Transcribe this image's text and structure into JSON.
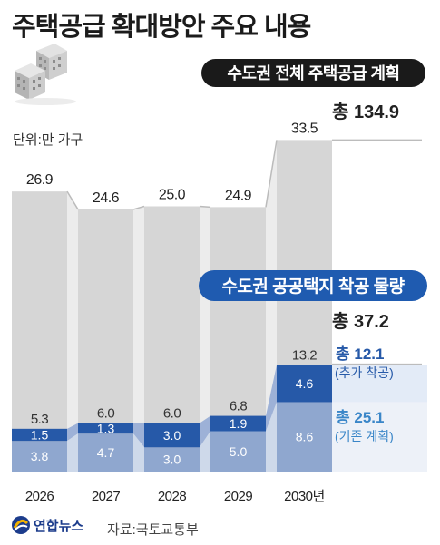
{
  "title": "주택공급 확대방안 주요 내용",
  "unit_label": "단위:만 가구",
  "source_label": "자료:국토교통부",
  "logo_label": "연합뉴스",
  "colors": {
    "total_bar": "#d6d6d6",
    "added": "#2659a8",
    "existing": "#8fa7cf",
    "banner": "#1a1a1a",
    "banner2": "#1f5bb0",
    "label_blue": "#3a86c8"
  },
  "chart_data": {
    "type": "bar",
    "categories": [
      "2026",
      "2027",
      "2028",
      "2029",
      "2030년"
    ],
    "series": [
      {
        "name": "수도권 전체 주택공급 계획",
        "values": [
          26.9,
          24.6,
          25.0,
          24.9,
          33.5
        ],
        "labels": [
          "26.9",
          "24.6",
          "25.0",
          "24.9",
          "33.5"
        ]
      },
      {
        "name": "수도권 공공택지 착공 물량",
        "values": [
          5.3,
          6.0,
          6.0,
          6.8,
          13.2
        ],
        "labels": [
          "5.3",
          "6.0",
          "6.0",
          "6.8",
          "13.2"
        ]
      },
      {
        "name": "추가 착공",
        "values": [
          1.5,
          1.3,
          3.0,
          1.9,
          4.6
        ],
        "labels": [
          "1.5",
          "1.3",
          "3.0",
          "1.9",
          "4.6"
        ]
      },
      {
        "name": "기존 계획",
        "values": [
          3.8,
          4.7,
          3.0,
          5.0,
          8.6
        ],
        "labels": [
          "3.8",
          "4.7",
          "3.0",
          "5.0",
          "8.6"
        ]
      }
    ],
    "banner_total": "수도권 전체 주택공급 계획",
    "banner_public": "수도권 공공택지 착공 물량",
    "total_all": "총 134.9",
    "total_public": "총 37.2",
    "total_added": "총 12.1",
    "total_added_note": "(추가 착공)",
    "total_existing": "총 25.1",
    "total_existing_note": "(기존 계획)"
  }
}
